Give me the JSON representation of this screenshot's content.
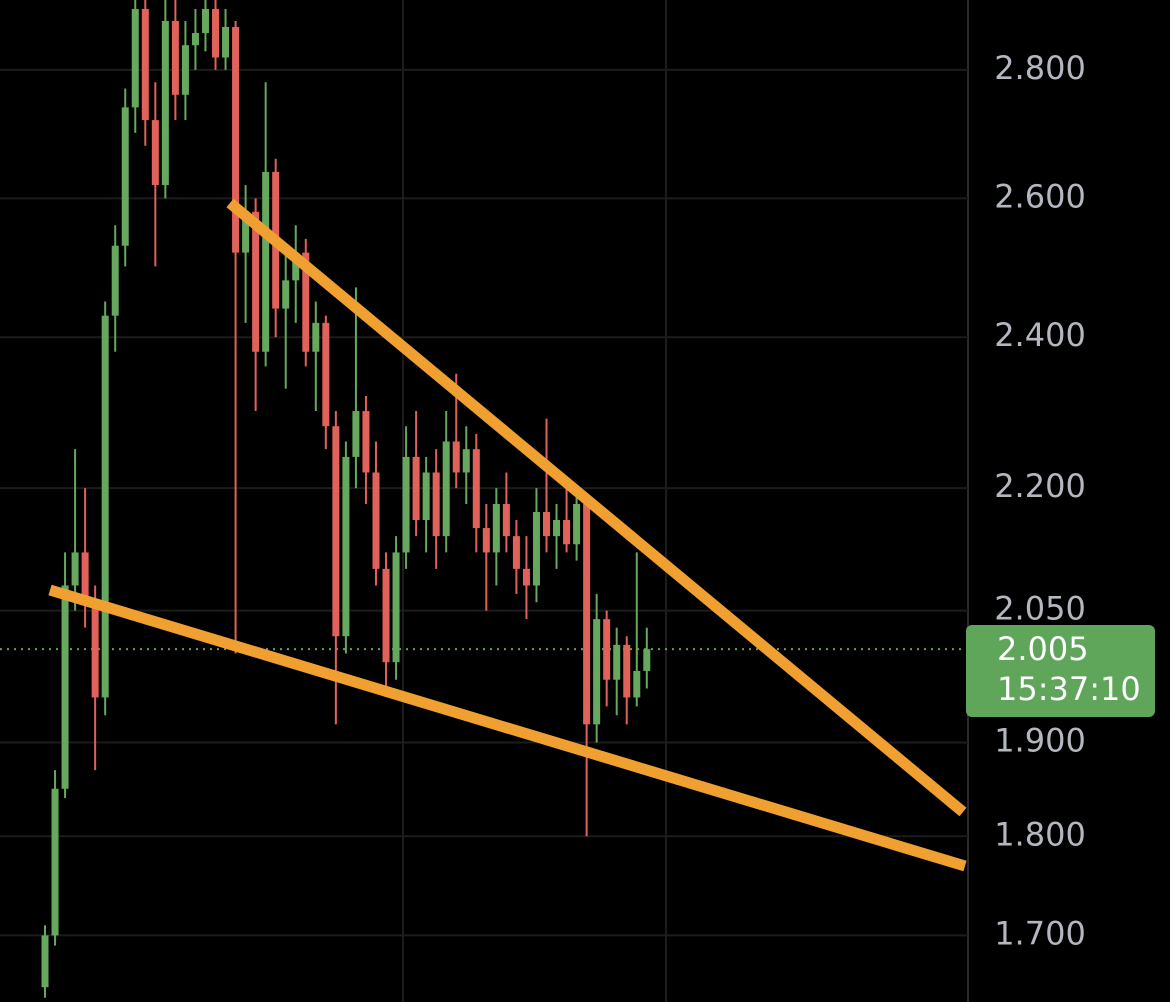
{
  "chart_data": {
    "type": "candlestick",
    "log_scale": true,
    "grid": true,
    "up_color": "#66a85e",
    "down_color": "#e0625a",
    "open": [
      1.65,
      1.7,
      1.85,
      2.08,
      2.12,
      2.06,
      1.95,
      2.43,
      2.53,
      2.74,
      2.9,
      2.72,
      2.62,
      2.88,
      2.76,
      2.84,
      2.86,
      2.9,
      2.82,
      2.87,
      2.52,
      2.58,
      2.38,
      2.64,
      2.44,
      2.48,
      2.52,
      2.38,
      2.42,
      2.28,
      2.02,
      2.24,
      2.3,
      2.22,
      2.1,
      1.99,
      2.12,
      2.24,
      2.16,
      2.22,
      2.14,
      2.26,
      2.22,
      2.25,
      2.15,
      2.12,
      2.18,
      2.14,
      2.1,
      2.08,
      2.17,
      2.14,
      2.16,
      2.13,
      2.18,
      1.92,
      2.04,
      1.97,
      2.01,
      1.95,
      1.98
    ],
    "high": [
      1.71,
      1.87,
      2.12,
      2.25,
      2.2,
      2.08,
      2.45,
      2.56,
      2.77,
      2.95,
      2.93,
      2.78,
      2.92,
      2.92,
      2.88,
      2.9,
      2.95,
      2.92,
      2.9,
      2.88,
      2.62,
      2.6,
      2.78,
      2.66,
      2.52,
      2.56,
      2.54,
      2.45,
      2.43,
      2.3,
      2.26,
      2.47,
      2.32,
      2.26,
      2.12,
      2.14,
      2.28,
      2.3,
      2.24,
      2.25,
      2.3,
      2.35,
      2.28,
      2.27,
      2.18,
      2.2,
      2.22,
      2.16,
      2.14,
      2.2,
      2.29,
      2.18,
      2.2,
      2.2,
      2.19,
      2.07,
      2.05,
      2.03,
      2.02,
      2.12,
      2.03
    ],
    "low": [
      1.64,
      1.69,
      1.84,
      2.05,
      2.03,
      1.87,
      1.93,
      2.38,
      2.5,
      2.7,
      2.68,
      2.5,
      2.6,
      2.72,
      2.72,
      2.8,
      2.83,
      2.8,
      2.8,
      2.0,
      2.42,
      2.3,
      2.36,
      2.4,
      2.33,
      2.42,
      2.36,
      2.3,
      2.25,
      1.92,
      2.0,
      2.2,
      2.18,
      2.08,
      1.96,
      1.97,
      2.1,
      2.14,
      2.12,
      2.1,
      2.12,
      2.2,
      2.18,
      2.12,
      2.05,
      2.08,
      2.12,
      2.07,
      2.04,
      2.06,
      2.12,
      2.1,
      2.12,
      2.11,
      1.8,
      1.9,
      1.94,
      1.93,
      1.92,
      1.94,
      1.96
    ],
    "close": [
      1.7,
      1.85,
      2.08,
      2.12,
      2.06,
      1.95,
      2.43,
      2.53,
      2.74,
      2.9,
      2.72,
      2.62,
      2.88,
      2.76,
      2.84,
      2.86,
      2.9,
      2.82,
      2.87,
      2.52,
      2.58,
      2.38,
      2.64,
      2.44,
      2.48,
      2.52,
      2.38,
      2.42,
      2.28,
      2.02,
      2.24,
      2.3,
      2.22,
      2.1,
      1.99,
      2.12,
      2.24,
      2.16,
      2.22,
      2.14,
      2.26,
      2.22,
      2.25,
      2.15,
      2.12,
      2.18,
      2.14,
      2.1,
      2.08,
      2.17,
      2.14,
      2.16,
      2.13,
      2.18,
      1.92,
      2.04,
      1.97,
      2.01,
      1.95,
      1.98,
      2.005
    ],
    "ylim": [
      1.636,
      2.915
    ],
    "yticks": [
      {
        "value": 1.7,
        "label": "1.700"
      },
      {
        "value": 1.8,
        "label": "1.800"
      },
      {
        "value": 1.9,
        "label": "1.900"
      },
      {
        "value": 2.05,
        "label": "2.050"
      },
      {
        "value": 2.2,
        "label": "2.200"
      },
      {
        "value": 2.4,
        "label": "2.400"
      },
      {
        "value": 2.6,
        "label": "2.600"
      },
      {
        "value": 2.8,
        "label": "2.800"
      }
    ],
    "last_price": 2.005,
    "last_price_color": "#5fa55a",
    "countdown": "15:37:10"
  }
}
